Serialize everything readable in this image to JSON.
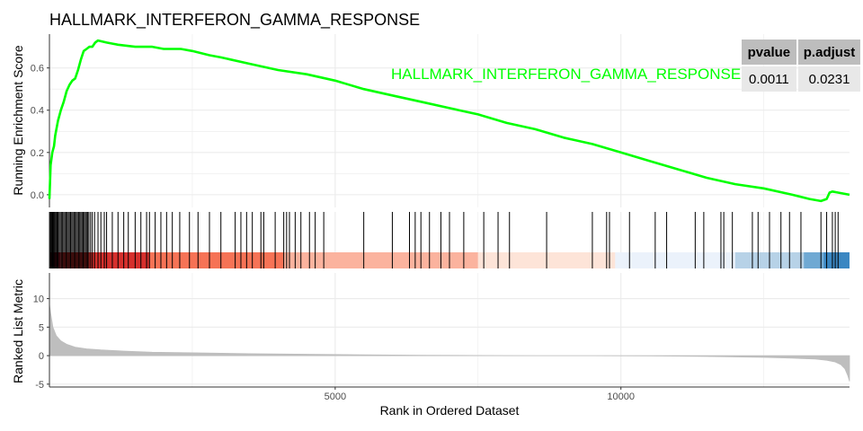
{
  "chart_data": {
    "type": "line",
    "title": "HALLMARK_INTERFERON_GAMMA_RESPONSE",
    "xlabel": "Rank in Ordered Dataset",
    "xlim": [
      0,
      14000
    ],
    "xticks": [
      5000,
      10000
    ],
    "xtick_labels": [
      "5000",
      "10000"
    ],
    "colors": {
      "curve": "#00ff00",
      "hits": "#000000",
      "metric_fill": "#bebebe",
      "grid": "#ebebeb"
    },
    "running_score": {
      "ylabel": "Running Enrichment Score",
      "ylim": [
        -0.06,
        0.76
      ],
      "yticks": [
        0.0,
        0.2,
        0.4,
        0.6
      ],
      "ytick_labels": [
        "0.0",
        "0.2",
        "0.4",
        "0.6"
      ],
      "series": [
        {
          "name": "HALLMARK_INTERFERON_GAMMA_RESPONSE",
          "x": [
            0,
            20,
            50,
            80,
            100,
            150,
            200,
            250,
            300,
            350,
            400,
            450,
            500,
            550,
            600,
            650,
            700,
            750,
            800,
            850,
            1000,
            1200,
            1500,
            1800,
            2000,
            2300,
            2500,
            2800,
            3000,
            3500,
            4000,
            4500,
            5000,
            5500,
            6000,
            6500,
            7000,
            7500,
            8000,
            8500,
            9000,
            9500,
            10000,
            10500,
            11000,
            11500,
            12000,
            12500,
            13000,
            13300,
            13500,
            13600,
            13650,
            13700,
            13800,
            14000
          ],
          "y": [
            -0.02,
            0.14,
            0.2,
            0.23,
            0.28,
            0.35,
            0.4,
            0.44,
            0.49,
            0.52,
            0.54,
            0.55,
            0.59,
            0.64,
            0.68,
            0.69,
            0.7,
            0.7,
            0.72,
            0.73,
            0.72,
            0.71,
            0.7,
            0.7,
            0.69,
            0.69,
            0.68,
            0.66,
            0.65,
            0.62,
            0.59,
            0.57,
            0.54,
            0.5,
            0.47,
            0.44,
            0.41,
            0.38,
            0.34,
            0.31,
            0.27,
            0.24,
            0.2,
            0.16,
            0.12,
            0.08,
            0.05,
            0.03,
            0.0,
            -0.02,
            -0.03,
            -0.02,
            0.01,
            0.015,
            0.01,
            0.0
          ]
        }
      ]
    },
    "gene_hits": [
      10,
      25,
      40,
      55,
      70,
      85,
      100,
      120,
      135,
      150,
      170,
      190,
      210,
      230,
      250,
      270,
      290,
      310,
      330,
      350,
      370,
      390,
      410,
      430,
      450,
      470,
      490,
      510,
      530,
      550,
      570,
      590,
      610,
      630,
      650,
      670,
      690,
      720,
      750,
      790,
      850,
      900,
      960,
      1000,
      1100,
      1200,
      1300,
      1380,
      1500,
      1600,
      1700,
      1750,
      1850,
      1950,
      2050,
      2150,
      2280,
      2450,
      2600,
      2800,
      3000,
      3250,
      3350,
      3450,
      3550,
      3700,
      3750,
      3950,
      4100,
      4150,
      4200,
      4300,
      4400,
      4550,
      4650,
      4800,
      5500,
      6000,
      6300,
      6400,
      6500,
      6650,
      6850,
      7000,
      7250,
      7600,
      7850,
      8050,
      8700,
      9500,
      9750,
      9800,
      10150,
      10600,
      10800,
      11300,
      11450,
      11750,
      11800,
      11950,
      12300,
      12400,
      12600,
      12800,
      12950,
      13150,
      13500,
      13600,
      13700,
      13750,
      13800
    ],
    "color_bar": [
      {
        "from": 0,
        "to": 200,
        "color": "#b2182b"
      },
      {
        "from": 200,
        "to": 1750,
        "color": "#d6302d"
      },
      {
        "from": 1750,
        "to": 4100,
        "color": "#f67356"
      },
      {
        "from": 4100,
        "to": 7500,
        "color": "#fbb39e"
      },
      {
        "from": 7500,
        "to": 9900,
        "color": "#fde4d8"
      },
      {
        "from": 9900,
        "to": 12000,
        "color": "#ebf2fb"
      },
      {
        "from": 12000,
        "to": 13200,
        "color": "#b7d2e7"
      },
      {
        "from": 13200,
        "to": 13550,
        "color": "#6fa9d3"
      },
      {
        "from": 13550,
        "to": 14000,
        "color": "#3b87c2"
      }
    ],
    "ranked_metric": {
      "ylabel": "Ranked List Metric",
      "ylim": [
        -5.5,
        14.5
      ],
      "yticks": [
        -5,
        0,
        5,
        10
      ],
      "ytick_labels": [
        "-5",
        "0",
        "5",
        "10"
      ],
      "x": [
        0,
        20,
        60,
        120,
        200,
        300,
        450,
        650,
        900,
        1300,
        1800,
        2500,
        3500,
        4500,
        5500,
        6500,
        7500,
        8500,
        8900,
        9000,
        9400,
        9500,
        10500,
        11500,
        12500,
        13000,
        13400,
        13600,
        13750,
        13850,
        13920,
        13970,
        14000
      ],
      "y": [
        9.0,
        7.5,
        5.0,
        3.5,
        2.6,
        2.0,
        1.5,
        1.2,
        1.0,
        0.8,
        0.6,
        0.5,
        0.35,
        0.25,
        0.15,
        0.08,
        0.03,
        0.0,
        0.0,
        0.0,
        0.0,
        0.0,
        -0.05,
        -0.15,
        -0.3,
        -0.45,
        -0.6,
        -0.8,
        -1.1,
        -1.6,
        -2.3,
        -3.5,
        -4.5
      ]
    }
  },
  "stats_table": {
    "headers": [
      "pvalue",
      "p.adjust"
    ],
    "values": [
      "0.0011",
      "0.0231"
    ]
  }
}
